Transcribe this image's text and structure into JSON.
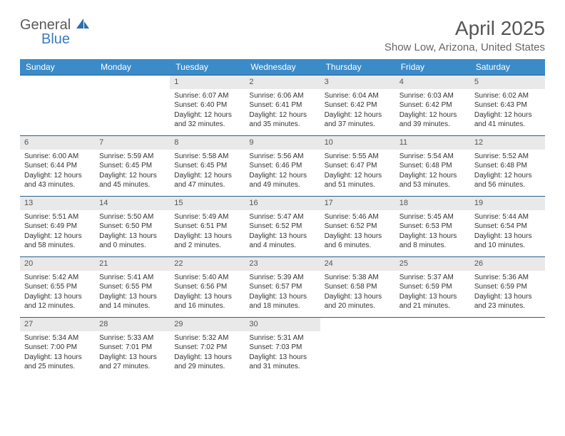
{
  "brand": {
    "part1": "General",
    "part2": "Blue"
  },
  "title": "April 2025",
  "location": "Show Low, Arizona, United States",
  "colors": {
    "header_bg": "#3b8bc9",
    "week_border": "#2a5f8a",
    "daynum_bg": "#e9e9e9",
    "text": "#333333",
    "brand_gray": "#5a5a5a",
    "brand_blue": "#3b7bbf"
  },
  "days_of_week": [
    "Sunday",
    "Monday",
    "Tuesday",
    "Wednesday",
    "Thursday",
    "Friday",
    "Saturday"
  ],
  "weeks": [
    [
      {
        "n": "",
        "sr": "",
        "ss": "",
        "dl": ""
      },
      {
        "n": "",
        "sr": "",
        "ss": "",
        "dl": ""
      },
      {
        "n": "1",
        "sr": "Sunrise: 6:07 AM",
        "ss": "Sunset: 6:40 PM",
        "dl": "Daylight: 12 hours and 32 minutes."
      },
      {
        "n": "2",
        "sr": "Sunrise: 6:06 AM",
        "ss": "Sunset: 6:41 PM",
        "dl": "Daylight: 12 hours and 35 minutes."
      },
      {
        "n": "3",
        "sr": "Sunrise: 6:04 AM",
        "ss": "Sunset: 6:42 PM",
        "dl": "Daylight: 12 hours and 37 minutes."
      },
      {
        "n": "4",
        "sr": "Sunrise: 6:03 AM",
        "ss": "Sunset: 6:42 PM",
        "dl": "Daylight: 12 hours and 39 minutes."
      },
      {
        "n": "5",
        "sr": "Sunrise: 6:02 AM",
        "ss": "Sunset: 6:43 PM",
        "dl": "Daylight: 12 hours and 41 minutes."
      }
    ],
    [
      {
        "n": "6",
        "sr": "Sunrise: 6:00 AM",
        "ss": "Sunset: 6:44 PM",
        "dl": "Daylight: 12 hours and 43 minutes."
      },
      {
        "n": "7",
        "sr": "Sunrise: 5:59 AM",
        "ss": "Sunset: 6:45 PM",
        "dl": "Daylight: 12 hours and 45 minutes."
      },
      {
        "n": "8",
        "sr": "Sunrise: 5:58 AM",
        "ss": "Sunset: 6:45 PM",
        "dl": "Daylight: 12 hours and 47 minutes."
      },
      {
        "n": "9",
        "sr": "Sunrise: 5:56 AM",
        "ss": "Sunset: 6:46 PM",
        "dl": "Daylight: 12 hours and 49 minutes."
      },
      {
        "n": "10",
        "sr": "Sunrise: 5:55 AM",
        "ss": "Sunset: 6:47 PM",
        "dl": "Daylight: 12 hours and 51 minutes."
      },
      {
        "n": "11",
        "sr": "Sunrise: 5:54 AM",
        "ss": "Sunset: 6:48 PM",
        "dl": "Daylight: 12 hours and 53 minutes."
      },
      {
        "n": "12",
        "sr": "Sunrise: 5:52 AM",
        "ss": "Sunset: 6:48 PM",
        "dl": "Daylight: 12 hours and 56 minutes."
      }
    ],
    [
      {
        "n": "13",
        "sr": "Sunrise: 5:51 AM",
        "ss": "Sunset: 6:49 PM",
        "dl": "Daylight: 12 hours and 58 minutes."
      },
      {
        "n": "14",
        "sr": "Sunrise: 5:50 AM",
        "ss": "Sunset: 6:50 PM",
        "dl": "Daylight: 13 hours and 0 minutes."
      },
      {
        "n": "15",
        "sr": "Sunrise: 5:49 AM",
        "ss": "Sunset: 6:51 PM",
        "dl": "Daylight: 13 hours and 2 minutes."
      },
      {
        "n": "16",
        "sr": "Sunrise: 5:47 AM",
        "ss": "Sunset: 6:52 PM",
        "dl": "Daylight: 13 hours and 4 minutes."
      },
      {
        "n": "17",
        "sr": "Sunrise: 5:46 AM",
        "ss": "Sunset: 6:52 PM",
        "dl": "Daylight: 13 hours and 6 minutes."
      },
      {
        "n": "18",
        "sr": "Sunrise: 5:45 AM",
        "ss": "Sunset: 6:53 PM",
        "dl": "Daylight: 13 hours and 8 minutes."
      },
      {
        "n": "19",
        "sr": "Sunrise: 5:44 AM",
        "ss": "Sunset: 6:54 PM",
        "dl": "Daylight: 13 hours and 10 minutes."
      }
    ],
    [
      {
        "n": "20",
        "sr": "Sunrise: 5:42 AM",
        "ss": "Sunset: 6:55 PM",
        "dl": "Daylight: 13 hours and 12 minutes."
      },
      {
        "n": "21",
        "sr": "Sunrise: 5:41 AM",
        "ss": "Sunset: 6:55 PM",
        "dl": "Daylight: 13 hours and 14 minutes."
      },
      {
        "n": "22",
        "sr": "Sunrise: 5:40 AM",
        "ss": "Sunset: 6:56 PM",
        "dl": "Daylight: 13 hours and 16 minutes."
      },
      {
        "n": "23",
        "sr": "Sunrise: 5:39 AM",
        "ss": "Sunset: 6:57 PM",
        "dl": "Daylight: 13 hours and 18 minutes."
      },
      {
        "n": "24",
        "sr": "Sunrise: 5:38 AM",
        "ss": "Sunset: 6:58 PM",
        "dl": "Daylight: 13 hours and 20 minutes."
      },
      {
        "n": "25",
        "sr": "Sunrise: 5:37 AM",
        "ss": "Sunset: 6:59 PM",
        "dl": "Daylight: 13 hours and 21 minutes."
      },
      {
        "n": "26",
        "sr": "Sunrise: 5:36 AM",
        "ss": "Sunset: 6:59 PM",
        "dl": "Daylight: 13 hours and 23 minutes."
      }
    ],
    [
      {
        "n": "27",
        "sr": "Sunrise: 5:34 AM",
        "ss": "Sunset: 7:00 PM",
        "dl": "Daylight: 13 hours and 25 minutes."
      },
      {
        "n": "28",
        "sr": "Sunrise: 5:33 AM",
        "ss": "Sunset: 7:01 PM",
        "dl": "Daylight: 13 hours and 27 minutes."
      },
      {
        "n": "29",
        "sr": "Sunrise: 5:32 AM",
        "ss": "Sunset: 7:02 PM",
        "dl": "Daylight: 13 hours and 29 minutes."
      },
      {
        "n": "30",
        "sr": "Sunrise: 5:31 AM",
        "ss": "Sunset: 7:03 PM",
        "dl": "Daylight: 13 hours and 31 minutes."
      },
      {
        "n": "",
        "sr": "",
        "ss": "",
        "dl": ""
      },
      {
        "n": "",
        "sr": "",
        "ss": "",
        "dl": ""
      },
      {
        "n": "",
        "sr": "",
        "ss": "",
        "dl": ""
      }
    ]
  ]
}
